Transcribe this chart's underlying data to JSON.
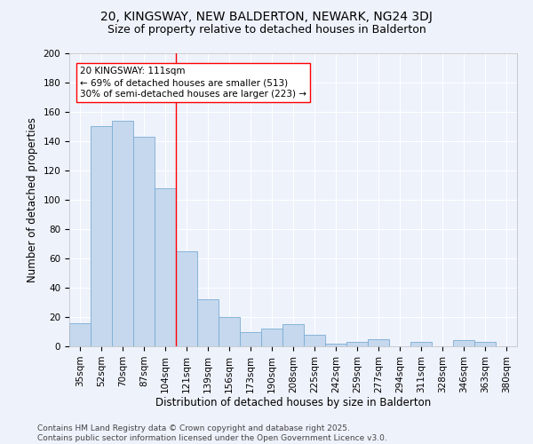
{
  "title": "20, KINGSWAY, NEW BALDERTON, NEWARK, NG24 3DJ",
  "subtitle": "Size of property relative to detached houses in Balderton",
  "xlabel": "Distribution of detached houses by size in Balderton",
  "ylabel": "Number of detached properties",
  "categories": [
    "35sqm",
    "52sqm",
    "70sqm",
    "87sqm",
    "104sqm",
    "121sqm",
    "139sqm",
    "156sqm",
    "173sqm",
    "190sqm",
    "208sqm",
    "225sqm",
    "242sqm",
    "259sqm",
    "277sqm",
    "294sqm",
    "311sqm",
    "328sqm",
    "346sqm",
    "363sqm",
    "380sqm"
  ],
  "values": [
    16,
    150,
    154,
    143,
    108,
    65,
    32,
    20,
    10,
    12,
    15,
    8,
    2,
    3,
    5,
    0,
    3,
    0,
    4,
    3,
    0
  ],
  "bar_color": "#c5d8ee",
  "bar_edge_color": "#7aadd4",
  "vline_x_index": 4.5,
  "vline_color": "red",
  "annotation_text": "20 KINGSWAY: 111sqm\n← 69% of detached houses are smaller (513)\n30% of semi-detached houses are larger (223) →",
  "annotation_box_color": "white",
  "annotation_box_edge_color": "red",
  "footnote": "Contains HM Land Registry data © Crown copyright and database right 2025.\nContains public sector information licensed under the Open Government Licence v3.0.",
  "ylim": [
    0,
    200
  ],
  "yticks": [
    0,
    20,
    40,
    60,
    80,
    100,
    120,
    140,
    160,
    180,
    200
  ],
  "background_color": "#eef2fb",
  "grid_color": "#ffffff",
  "title_fontsize": 10,
  "subtitle_fontsize": 9,
  "axis_label_fontsize": 8.5,
  "tick_fontsize": 7.5,
  "footnote_fontsize": 6.5,
  "annotation_fontsize": 7.5
}
